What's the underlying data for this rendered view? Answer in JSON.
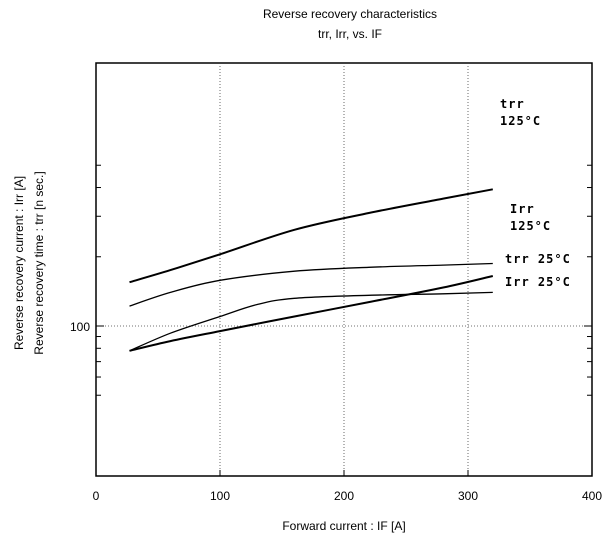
{
  "chart_data": {
    "type": "line",
    "title": "Reverse recovery characteristics",
    "subtitle": "trr, Irr, vs. IF",
    "xlabel": "Forward current  :  IF [A]",
    "ylabel_line1": "Reverse recovery current  :  Irr  [A]",
    "ylabel_line2": "Reverse recovery time  :  trr [n sec.]",
    "xlim": [
      0,
      400
    ],
    "x_ticks": [
      0,
      100,
      200,
      300,
      400
    ],
    "y_scale": "log",
    "ylim": [
      40,
      600
    ],
    "y_ticks": [
      100
    ],
    "grid": true,
    "series": [
      {
        "name": "trr 125°C",
        "x": [
          27,
          60,
          100,
          160,
          220,
          280,
          320
        ],
        "y": [
          155,
          175,
          205,
          262,
          310,
          358,
          393
        ]
      },
      {
        "name": "Irr 125°C",
        "x": [
          27,
          60,
          100,
          160,
          220,
          280,
          320
        ],
        "y": [
          122,
          140,
          158,
          173,
          180,
          184,
          187
        ]
      },
      {
        "name": "trr 25°C",
        "x": [
          27,
          60,
          100,
          160,
          220,
          280,
          320
        ],
        "y": [
          78,
          86,
          95,
          110,
          127,
          147,
          165
        ]
      },
      {
        "name": "Irr 25°C",
        "x": [
          27,
          60,
          100,
          130,
          160,
          220,
          280,
          320
        ],
        "y": [
          78,
          93,
          110,
          124,
          132,
          136,
          138,
          140
        ]
      }
    ],
    "annotations": [
      {
        "lines": [
          "trr",
          "125°C"
        ],
        "series": "trr 125°C"
      },
      {
        "lines": [
          "Irr",
          "125°C"
        ],
        "series": "Irr 125°C"
      },
      {
        "lines": [
          "trr 25°C"
        ],
        "series": "trr 25°C"
      },
      {
        "lines": [
          "Irr 25°C"
        ],
        "series": "Irr 25°C"
      }
    ]
  }
}
